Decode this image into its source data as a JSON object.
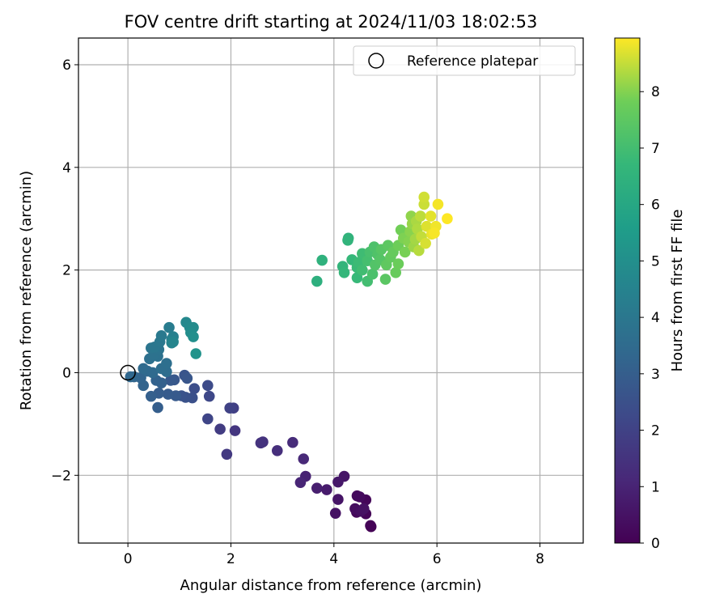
{
  "chart_data": {
    "type": "scatter",
    "title": "FOV centre drift starting at 2024/11/03 18:02:53",
    "xlabel": "Angular distance from reference (arcmin)",
    "ylabel": "Rotation from reference (arcmin)",
    "xlim": [
      -0.96,
      8.84
    ],
    "ylim": [
      -3.32,
      6.52
    ],
    "xticks": [
      0,
      2,
      4,
      6,
      8
    ],
    "yticks": [
      -2,
      0,
      2,
      4,
      6
    ],
    "xtick_labels": [
      "0",
      "2",
      "4",
      "6",
      "8"
    ],
    "ytick_labels": [
      "−2",
      "0",
      "2",
      "4",
      "6"
    ],
    "grid": true,
    "legend": {
      "location": "top-right",
      "entries": [
        "Reference platepar"
      ]
    },
    "reference_point": {
      "name": "Reference platepar",
      "x": 0,
      "y": 0,
      "marker": "open-circle"
    },
    "colorbar": {
      "label": "Hours from first FF file",
      "colormap": "viridis",
      "range": [
        0,
        8.95
      ],
      "ticks": [
        0,
        1,
        2,
        3,
        4,
        5,
        6,
        7,
        8
      ],
      "tick_labels": [
        "0",
        "1",
        "2",
        "3",
        "4",
        "5",
        "6",
        "7",
        "8"
      ]
    },
    "points": [
      {
        "x": 4.72,
        "y": -3.0,
        "h": 0.0
      },
      {
        "x": 4.71,
        "y": -2.98,
        "h": 0.05
      },
      {
        "x": 4.62,
        "y": -2.75,
        "h": 0.1
      },
      {
        "x": 4.62,
        "y": -2.48,
        "h": 0.15
      },
      {
        "x": 4.44,
        "y": -2.72,
        "h": 0.2
      },
      {
        "x": 4.45,
        "y": -2.4,
        "h": 0.25
      },
      {
        "x": 4.5,
        "y": -2.42,
        "h": 0.3
      },
      {
        "x": 4.41,
        "y": -2.65,
        "h": 0.35
      },
      {
        "x": 4.52,
        "y": -2.7,
        "h": 0.4
      },
      {
        "x": 4.58,
        "y": -2.65,
        "h": 0.45
      },
      {
        "x": 4.03,
        "y": -2.74,
        "h": 0.5
      },
      {
        "x": 4.08,
        "y": -2.47,
        "h": 0.55
      },
      {
        "x": 4.2,
        "y": -2.02,
        "h": 0.6
      },
      {
        "x": 4.08,
        "y": -2.13,
        "h": 0.65
      },
      {
        "x": 3.86,
        "y": -2.28,
        "h": 0.75
      },
      {
        "x": 3.67,
        "y": -2.25,
        "h": 0.85
      },
      {
        "x": 3.45,
        "y": -2.02,
        "h": 0.95
      },
      {
        "x": 3.35,
        "y": -2.14,
        "h": 1.05
      },
      {
        "x": 3.41,
        "y": -1.68,
        "h": 1.15
      },
      {
        "x": 3.2,
        "y": -1.36,
        "h": 1.25
      },
      {
        "x": 2.9,
        "y": -1.52,
        "h": 1.35
      },
      {
        "x": 2.62,
        "y": -1.35,
        "h": 1.45
      },
      {
        "x": 2.58,
        "y": -1.37,
        "h": 1.5
      },
      {
        "x": 2.08,
        "y": -1.13,
        "h": 1.6
      },
      {
        "x": 1.92,
        "y": -1.59,
        "h": 1.7
      },
      {
        "x": 1.79,
        "y": -1.1,
        "h": 1.8
      },
      {
        "x": 2.05,
        "y": -0.69,
        "h": 1.9
      },
      {
        "x": 1.98,
        "y": -0.69,
        "h": 2.0
      },
      {
        "x": 1.55,
        "y": -0.9,
        "h": 2.1
      },
      {
        "x": 1.58,
        "y": -0.46,
        "h": 2.2
      },
      {
        "x": 1.55,
        "y": -0.25,
        "h": 2.3
      },
      {
        "x": 1.29,
        "y": -0.31,
        "h": 2.4
      },
      {
        "x": 1.25,
        "y": -0.49,
        "h": 2.5
      },
      {
        "x": 1.12,
        "y": -0.48,
        "h": 2.55
      },
      {
        "x": 1.04,
        "y": -0.45,
        "h": 2.6
      },
      {
        "x": 1.1,
        "y": -0.05,
        "h": 2.65
      },
      {
        "x": 1.15,
        "y": -0.11,
        "h": 2.7
      },
      {
        "x": 0.9,
        "y": -0.14,
        "h": 2.75
      },
      {
        "x": 0.83,
        "y": -0.15,
        "h": 2.8
      },
      {
        "x": 0.93,
        "y": -0.45,
        "h": 2.85
      },
      {
        "x": 0.78,
        "y": -0.42,
        "h": 2.9
      },
      {
        "x": 0.6,
        "y": -0.4,
        "h": 2.95
      },
      {
        "x": 0.58,
        "y": -0.68,
        "h": 3.0
      },
      {
        "x": 0.45,
        "y": -0.46,
        "h": 3.05
      },
      {
        "x": 0.65,
        "y": -0.2,
        "h": 3.1
      },
      {
        "x": 0.55,
        "y": -0.15,
        "h": 3.15
      },
      {
        "x": 0.3,
        "y": -0.25,
        "h": 3.2
      },
      {
        "x": 0.25,
        "y": -0.1,
        "h": 3.25
      },
      {
        "x": 0.12,
        "y": -0.08,
        "h": 3.3
      },
      {
        "x": 0.05,
        "y": -0.08,
        "h": 3.35
      },
      {
        "x": 0.38,
        "y": 0.03,
        "h": 3.4
      },
      {
        "x": 0.48,
        "y": 0.0,
        "h": 3.45
      },
      {
        "x": 0.3,
        "y": 0.08,
        "h": 3.5
      },
      {
        "x": 0.75,
        "y": 0.02,
        "h": 3.55
      },
      {
        "x": 0.65,
        "y": 0.08,
        "h": 3.6
      },
      {
        "x": 0.75,
        "y": 0.18,
        "h": 3.65
      },
      {
        "x": 0.42,
        "y": 0.27,
        "h": 3.7
      },
      {
        "x": 0.58,
        "y": 0.32,
        "h": 3.75
      },
      {
        "x": 0.5,
        "y": 0.35,
        "h": 3.8
      },
      {
        "x": 0.6,
        "y": 0.45,
        "h": 3.85
      },
      {
        "x": 0.45,
        "y": 0.48,
        "h": 3.9
      },
      {
        "x": 0.52,
        "y": 0.5,
        "h": 3.95
      },
      {
        "x": 0.62,
        "y": 0.6,
        "h": 4.0
      },
      {
        "x": 0.65,
        "y": 0.72,
        "h": 4.1
      },
      {
        "x": 0.8,
        "y": 0.88,
        "h": 4.2
      },
      {
        "x": 0.85,
        "y": 0.65,
        "h": 4.3
      },
      {
        "x": 0.88,
        "y": 0.7,
        "h": 4.4
      },
      {
        "x": 0.85,
        "y": 0.58,
        "h": 4.5
      },
      {
        "x": 0.88,
        "y": 0.6,
        "h": 4.6
      },
      {
        "x": 1.13,
        "y": 0.98,
        "h": 4.7
      },
      {
        "x": 1.2,
        "y": 0.88,
        "h": 4.8
      },
      {
        "x": 1.27,
        "y": 0.88,
        "h": 4.85
      },
      {
        "x": 1.22,
        "y": 0.78,
        "h": 4.9
      },
      {
        "x": 1.27,
        "y": 0.7,
        "h": 5.0
      },
      {
        "x": 1.32,
        "y": 0.37,
        "h": 5.15
      },
      {
        "x": 3.67,
        "y": 1.78,
        "h": 6.35
      },
      {
        "x": 3.77,
        "y": 2.19,
        "h": 6.45
      },
      {
        "x": 4.28,
        "y": 2.62,
        "h": 6.5
      },
      {
        "x": 4.27,
        "y": 2.58,
        "h": 6.55
      },
      {
        "x": 4.17,
        "y": 2.07,
        "h": 6.6
      },
      {
        "x": 4.2,
        "y": 1.95,
        "h": 6.65
      },
      {
        "x": 4.35,
        "y": 2.2,
        "h": 6.7
      },
      {
        "x": 4.45,
        "y": 1.85,
        "h": 6.75
      },
      {
        "x": 4.45,
        "y": 2.05,
        "h": 6.8
      },
      {
        "x": 4.48,
        "y": 2.15,
        "h": 6.85
      },
      {
        "x": 4.55,
        "y": 2.32,
        "h": 6.9
      },
      {
        "x": 4.55,
        "y": 2.0,
        "h": 6.95
      },
      {
        "x": 4.65,
        "y": 1.78,
        "h": 7.0
      },
      {
        "x": 4.65,
        "y": 2.18,
        "h": 7.05
      },
      {
        "x": 4.7,
        "y": 2.35,
        "h": 7.1
      },
      {
        "x": 4.75,
        "y": 1.92,
        "h": 7.15
      },
      {
        "x": 4.78,
        "y": 2.45,
        "h": 7.2
      },
      {
        "x": 4.85,
        "y": 2.3,
        "h": 7.25
      },
      {
        "x": 4.8,
        "y": 2.1,
        "h": 7.3
      },
      {
        "x": 4.9,
        "y": 2.2,
        "h": 7.35
      },
      {
        "x": 4.92,
        "y": 2.4,
        "h": 7.4
      },
      {
        "x": 5.0,
        "y": 1.82,
        "h": 7.45
      },
      {
        "x": 5.05,
        "y": 2.48,
        "h": 7.5
      },
      {
        "x": 5.02,
        "y": 2.1,
        "h": 7.55
      },
      {
        "x": 5.1,
        "y": 2.25,
        "h": 7.6
      },
      {
        "x": 5.15,
        "y": 2.35,
        "h": 7.65
      },
      {
        "x": 5.2,
        "y": 1.95,
        "h": 7.7
      },
      {
        "x": 5.25,
        "y": 2.12,
        "h": 7.75
      },
      {
        "x": 5.25,
        "y": 2.48,
        "h": 7.8
      },
      {
        "x": 5.3,
        "y": 2.78,
        "h": 7.85
      },
      {
        "x": 5.38,
        "y": 2.35,
        "h": 7.9
      },
      {
        "x": 5.35,
        "y": 2.62,
        "h": 7.95
      },
      {
        "x": 5.45,
        "y": 2.55,
        "h": 8.0
      },
      {
        "x": 5.48,
        "y": 2.75,
        "h": 8.05
      },
      {
        "x": 5.5,
        "y": 3.05,
        "h": 8.1
      },
      {
        "x": 5.52,
        "y": 2.9,
        "h": 8.15
      },
      {
        "x": 5.55,
        "y": 2.45,
        "h": 8.2
      },
      {
        "x": 5.58,
        "y": 2.6,
        "h": 8.25
      },
      {
        "x": 5.6,
        "y": 2.95,
        "h": 8.3
      },
      {
        "x": 5.62,
        "y": 2.8,
        "h": 8.35
      },
      {
        "x": 5.65,
        "y": 2.38,
        "h": 8.4
      },
      {
        "x": 5.68,
        "y": 3.05,
        "h": 8.45
      },
      {
        "x": 5.7,
        "y": 2.65,
        "h": 8.5
      },
      {
        "x": 5.75,
        "y": 3.28,
        "h": 8.55
      },
      {
        "x": 5.75,
        "y": 3.42,
        "h": 8.6
      },
      {
        "x": 5.78,
        "y": 2.52,
        "h": 8.65
      },
      {
        "x": 5.8,
        "y": 2.85,
        "h": 8.7
      },
      {
        "x": 5.88,
        "y": 3.05,
        "h": 8.75
      },
      {
        "x": 5.9,
        "y": 2.7,
        "h": 8.8
      },
      {
        "x": 5.98,
        "y": 2.85,
        "h": 8.85
      },
      {
        "x": 6.02,
        "y": 3.28,
        "h": 8.88
      },
      {
        "x": 5.95,
        "y": 2.72,
        "h": 8.9
      },
      {
        "x": 6.2,
        "y": 3.0,
        "h": 8.95
      }
    ]
  }
}
